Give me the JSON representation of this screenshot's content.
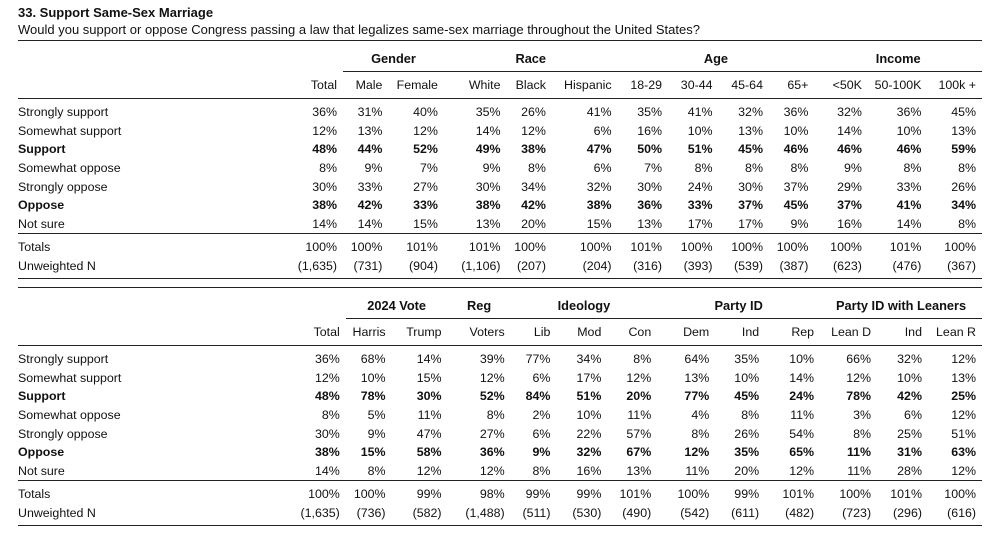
{
  "title": "33. Support Same-Sex Marriage",
  "question": "Would you support or oppose Congress passing a law that legalizes same-sex marriage throughout the United States?",
  "tables": [
    {
      "groups": [
        {
          "label": "",
          "span": 1
        },
        {
          "label": "Gender",
          "span": 2
        },
        {
          "label": "Race",
          "span": 3
        },
        {
          "label": "Age",
          "span": 4
        },
        {
          "label": "Income",
          "span": 3
        }
      ],
      "columns": [
        "Total",
        "Male",
        "Female",
        "White",
        "Black",
        "Hispanic",
        "18-29",
        "30-44",
        "45-64",
        "65+",
        "<50K",
        "50-100K",
        "100k +"
      ],
      "rows": [
        {
          "label": "Strongly support",
          "bold": false,
          "values": [
            "36%",
            "31%",
            "40%",
            "35%",
            "26%",
            "41%",
            "35%",
            "41%",
            "32%",
            "36%",
            "32%",
            "36%",
            "45%"
          ]
        },
        {
          "label": "Somewhat support",
          "bold": false,
          "values": [
            "12%",
            "13%",
            "12%",
            "14%",
            "12%",
            "6%",
            "16%",
            "10%",
            "13%",
            "10%",
            "14%",
            "10%",
            "13%"
          ]
        },
        {
          "label": "Support",
          "bold": true,
          "values": [
            "48%",
            "44%",
            "52%",
            "49%",
            "38%",
            "47%",
            "50%",
            "51%",
            "45%",
            "46%",
            "46%",
            "46%",
            "59%"
          ]
        },
        {
          "label": "Somewhat oppose",
          "bold": false,
          "values": [
            "8%",
            "9%",
            "7%",
            "9%",
            "8%",
            "6%",
            "7%",
            "8%",
            "8%",
            "8%",
            "9%",
            "8%",
            "8%"
          ]
        },
        {
          "label": "Strongly oppose",
          "bold": false,
          "values": [
            "30%",
            "33%",
            "27%",
            "30%",
            "34%",
            "32%",
            "30%",
            "24%",
            "30%",
            "37%",
            "29%",
            "33%",
            "26%"
          ]
        },
        {
          "label": "Oppose",
          "bold": true,
          "values": [
            "38%",
            "42%",
            "33%",
            "38%",
            "42%",
            "38%",
            "36%",
            "33%",
            "37%",
            "45%",
            "37%",
            "41%",
            "34%"
          ]
        },
        {
          "label": "Not sure",
          "bold": false,
          "values": [
            "14%",
            "14%",
            "15%",
            "13%",
            "20%",
            "15%",
            "13%",
            "17%",
            "17%",
            "9%",
            "16%",
            "14%",
            "8%"
          ]
        }
      ],
      "totals": [
        {
          "label": "Totals",
          "values": [
            "100%",
            "100%",
            "101%",
            "101%",
            "100%",
            "100%",
            "101%",
            "100%",
            "100%",
            "100%",
            "100%",
            "101%",
            "100%"
          ]
        },
        {
          "label": "Unweighted N",
          "values": [
            "(1,635)",
            "(731)",
            "(904)",
            "(1,106)",
            "(207)",
            "(204)",
            "(316)",
            "(393)",
            "(539)",
            "(387)",
            "(623)",
            "(476)",
            "(367)"
          ]
        }
      ]
    },
    {
      "groups": [
        {
          "label": "",
          "span": 1
        },
        {
          "label": "2024 Vote",
          "span": 2
        },
        {
          "label": "Reg",
          "span": 1
        },
        {
          "label": "Ideology",
          "span": 3
        },
        {
          "label": "Party ID",
          "span": 3
        },
        {
          "label": "Party ID with Leaners",
          "span": 3
        }
      ],
      "columns": [
        "Total",
        "Harris",
        "Trump",
        "Voters",
        "Lib",
        "Mod",
        "Con",
        "Dem",
        "Ind",
        "Rep",
        "Lean D",
        "Ind",
        "Lean R"
      ],
      "rows": [
        {
          "label": "Strongly support",
          "bold": false,
          "values": [
            "36%",
            "68%",
            "14%",
            "39%",
            "77%",
            "34%",
            "8%",
            "64%",
            "35%",
            "10%",
            "66%",
            "32%",
            "12%"
          ]
        },
        {
          "label": "Somewhat support",
          "bold": false,
          "values": [
            "12%",
            "10%",
            "15%",
            "12%",
            "6%",
            "17%",
            "12%",
            "13%",
            "10%",
            "14%",
            "12%",
            "10%",
            "13%"
          ]
        },
        {
          "label": "Support",
          "bold": true,
          "values": [
            "48%",
            "78%",
            "30%",
            "52%",
            "84%",
            "51%",
            "20%",
            "77%",
            "45%",
            "24%",
            "78%",
            "42%",
            "25%"
          ]
        },
        {
          "label": "Somewhat oppose",
          "bold": false,
          "values": [
            "8%",
            "5%",
            "11%",
            "8%",
            "2%",
            "10%",
            "11%",
            "4%",
            "8%",
            "11%",
            "3%",
            "6%",
            "12%"
          ]
        },
        {
          "label": "Strongly oppose",
          "bold": false,
          "values": [
            "30%",
            "9%",
            "47%",
            "27%",
            "6%",
            "22%",
            "57%",
            "8%",
            "26%",
            "54%",
            "8%",
            "25%",
            "51%"
          ]
        },
        {
          "label": "Oppose",
          "bold": true,
          "values": [
            "38%",
            "15%",
            "58%",
            "36%",
            "9%",
            "32%",
            "67%",
            "12%",
            "35%",
            "65%",
            "11%",
            "31%",
            "63%"
          ]
        },
        {
          "label": "Not sure",
          "bold": false,
          "values": [
            "14%",
            "8%",
            "12%",
            "12%",
            "8%",
            "16%",
            "13%",
            "11%",
            "20%",
            "12%",
            "11%",
            "28%",
            "12%"
          ]
        }
      ],
      "totals": [
        {
          "label": "Totals",
          "values": [
            "100%",
            "100%",
            "99%",
            "98%",
            "99%",
            "99%",
            "101%",
            "100%",
            "99%",
            "101%",
            "100%",
            "101%",
            "100%"
          ]
        },
        {
          "label": "Unweighted N",
          "values": [
            "(1,635)",
            "(736)",
            "(582)",
            "(1,488)",
            "(511)",
            "(530)",
            "(490)",
            "(542)",
            "(611)",
            "(482)",
            "(723)",
            "(296)",
            "(616)"
          ]
        }
      ]
    }
  ]
}
